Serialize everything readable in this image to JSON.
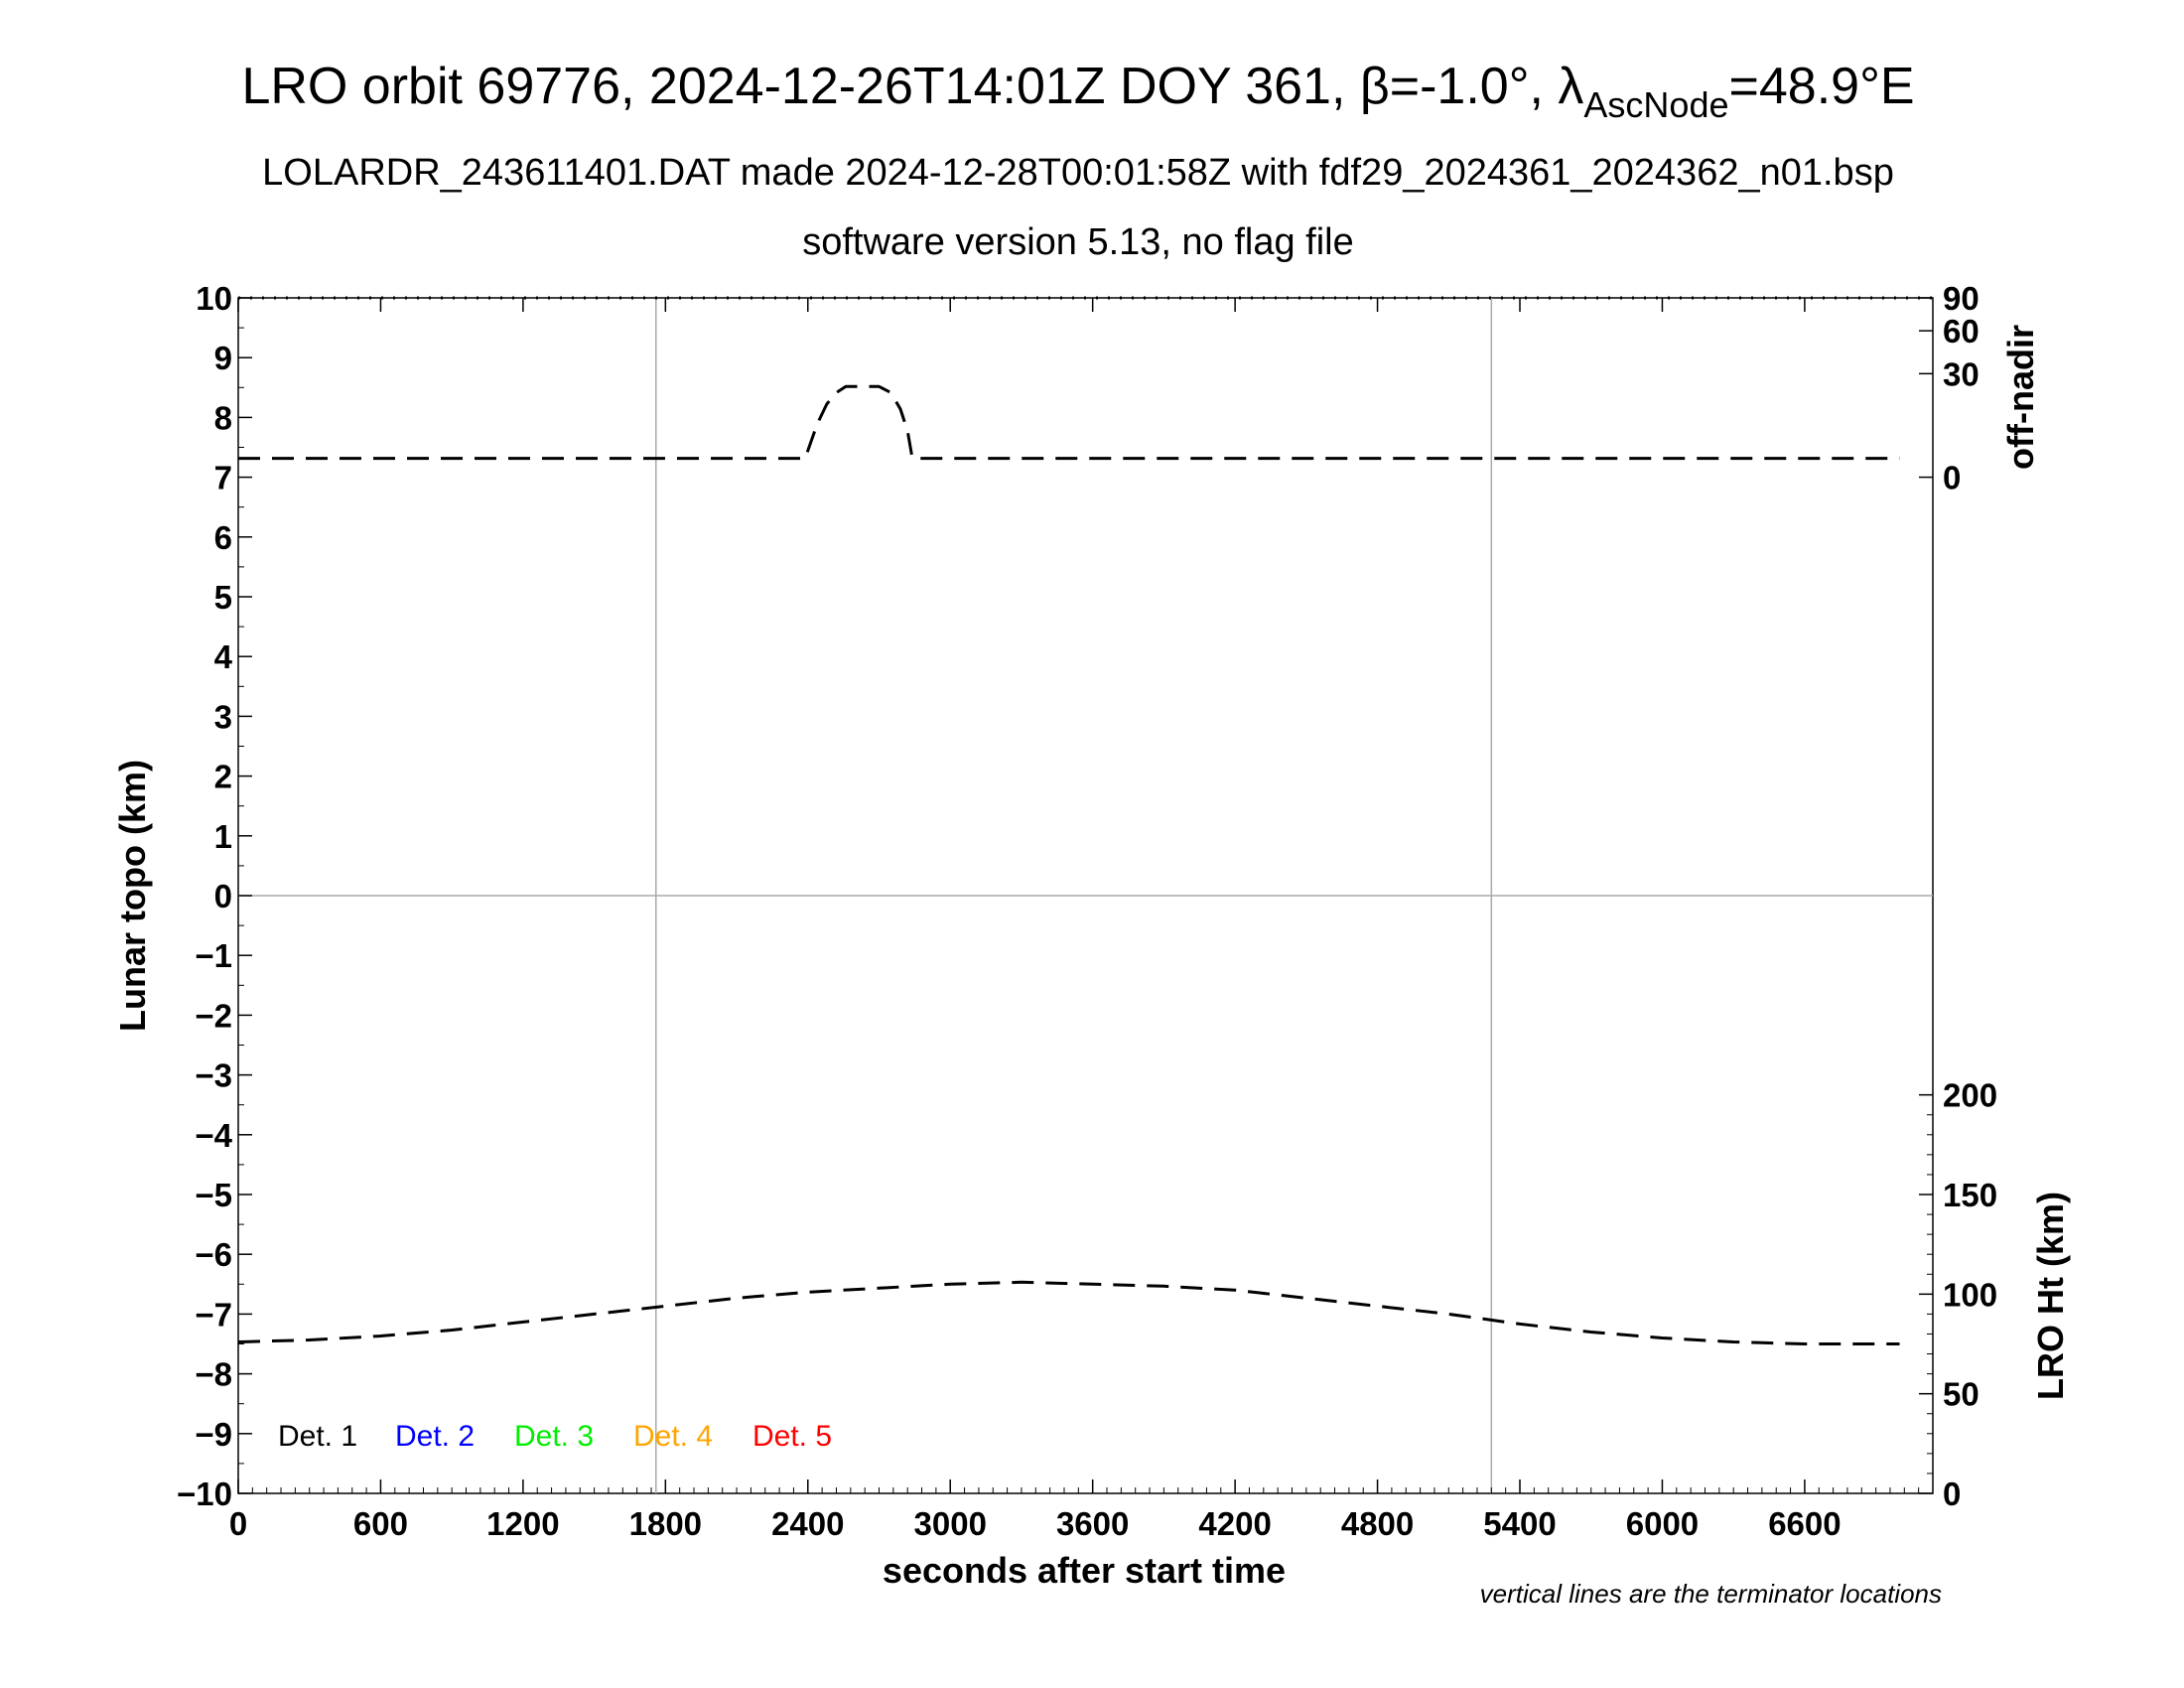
{
  "title": {
    "main": "LRO orbit 69776, 2024-12-26T14:01Z DOY 361, β=-1.0°, λ",
    "sub_node": "AscNode",
    "tail": "=48.9°E"
  },
  "subtitle_1": "LOLARDR_243611401.DAT made 2024-12-28T00:01:58Z with fdf29_2024361_2024362_n01.bsp",
  "subtitle_2": "software version 5.13, no flag file",
  "footnote": "vertical lines are the terminator locations",
  "colors": {
    "det1": "#000000",
    "det2": "#0000ff",
    "det3": "#00ee00",
    "det4": "#ffa500",
    "det5": "#ff0000",
    "grid": "#aaaaaa"
  },
  "chart_data": {
    "type": "line",
    "xlabel": "seconds after start time",
    "ylabel_left": "Lunar topo (km)",
    "ylabel_right_top": "off-nadir",
    "ylabel_right_bottom": "LRO Ht (km)",
    "xlim": [
      0,
      7140
    ],
    "ylim": [
      -10,
      10
    ],
    "x_ticks": [
      "0",
      "600",
      "1200",
      "1800",
      "2400",
      "3000",
      "3600",
      "4200",
      "4800",
      "5400",
      "6000",
      "6600"
    ],
    "x_tick_values": [
      0,
      600,
      1200,
      1800,
      2400,
      3000,
      3600,
      4200,
      4800,
      5400,
      6000,
      6600
    ],
    "y_ticks": [
      "10",
      "9",
      "8",
      "7",
      "6",
      "5",
      "4",
      "3",
      "2",
      "1",
      "0",
      "−1",
      "−2",
      "−3",
      "−4",
      "−5",
      "−6",
      "−7",
      "−8",
      "−9",
      "−10"
    ],
    "y_tick_values": [
      10,
      9,
      8,
      7,
      6,
      5,
      4,
      3,
      2,
      1,
      0,
      -1,
      -2,
      -3,
      -4,
      -5,
      -6,
      -7,
      -8,
      -9,
      -10
    ],
    "right_top_ticks": [
      "90",
      "60",
      "30",
      "0"
    ],
    "right_top_tick_values": [
      90,
      60,
      30,
      0
    ],
    "right_bottom_ticks": [
      "200",
      "150",
      "100",
      "50",
      "0"
    ],
    "right_bottom_tick_values": [
      200,
      150,
      100,
      50,
      0
    ],
    "terminator_x": [
      1760,
      5280
    ],
    "grid_y": [
      0
    ],
    "legend": [
      "Det. 1",
      "Det. 2",
      "Det. 3",
      "Det. 4",
      "Det. 5"
    ],
    "series": [
      {
        "name": "off-nadir",
        "axis": "off-nadir",
        "x": [
          0,
          600,
          1200,
          1800,
          2300,
          2390,
          2400,
          2440,
          2480,
          2520,
          2560,
          2600,
          2700,
          2750,
          2790,
          2820,
          2840,
          3000,
          3600,
          4200,
          4800,
          5400,
          6000,
          6600,
          7000
        ],
        "values": [
          1,
          1,
          1,
          1,
          1,
          1,
          2,
          8,
          15,
          20,
          23,
          23,
          23,
          20,
          13,
          6,
          1,
          1,
          1,
          1,
          1,
          1,
          1,
          1,
          1
        ]
      },
      {
        "name": "LRO Ht",
        "axis": "LRO Ht",
        "x": [
          0,
          300,
          600,
          900,
          1200,
          1500,
          1800,
          2100,
          2400,
          2700,
          3000,
          3300,
          3600,
          3900,
          4200,
          4500,
          4800,
          5100,
          5400,
          5700,
          6000,
          6300,
          6600,
          6900,
          7000
        ],
        "values": [
          76,
          77,
          79,
          82,
          86,
          90,
          94,
          98,
          101,
          103,
          105,
          106,
          105,
          104,
          102,
          98,
          94,
          90,
          85,
          81,
          78,
          76,
          75,
          75,
          75
        ]
      }
    ]
  }
}
